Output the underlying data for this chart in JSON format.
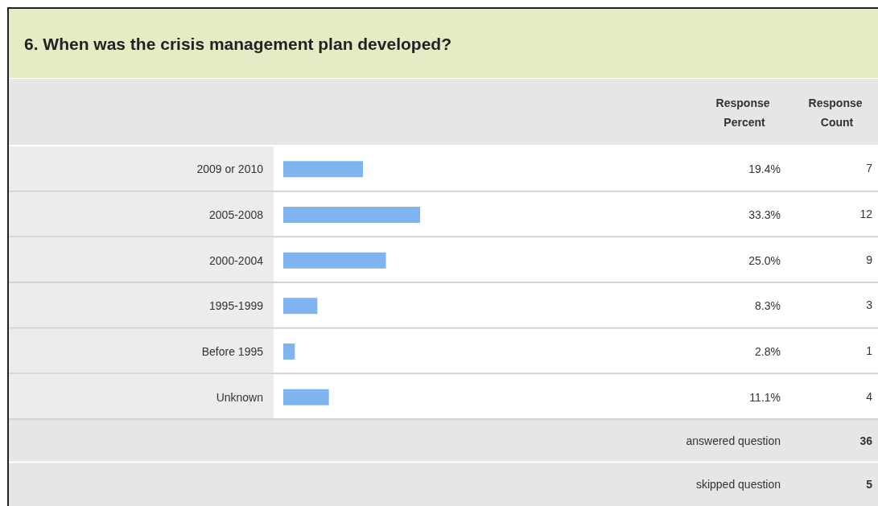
{
  "chart_data": {
    "type": "bar",
    "orientation": "horizontal",
    "title": "6. When was the crisis management plan developed?",
    "categories": [
      "2009 or 2010",
      "2005-2008",
      "2000-2004",
      "1995-1999",
      "Before 1995",
      "Unknown"
    ],
    "values": [
      19.4,
      33.3,
      25.0,
      8.3,
      2.8,
      11.1
    ],
    "value_labels": [
      "19.4%",
      "33.3%",
      "25.0%",
      "8.3%",
      "2.8%",
      "11.1%"
    ],
    "color": "#7fb4ee",
    "tick_labels": "y",
    "grid": false,
    "annotations": [
      "Response Percent",
      "Response Count",
      "answered question",
      "36",
      "skipped question",
      "5",
      "7",
      "12",
      "9",
      "3",
      "1",
      "4"
    ]
  }
}
